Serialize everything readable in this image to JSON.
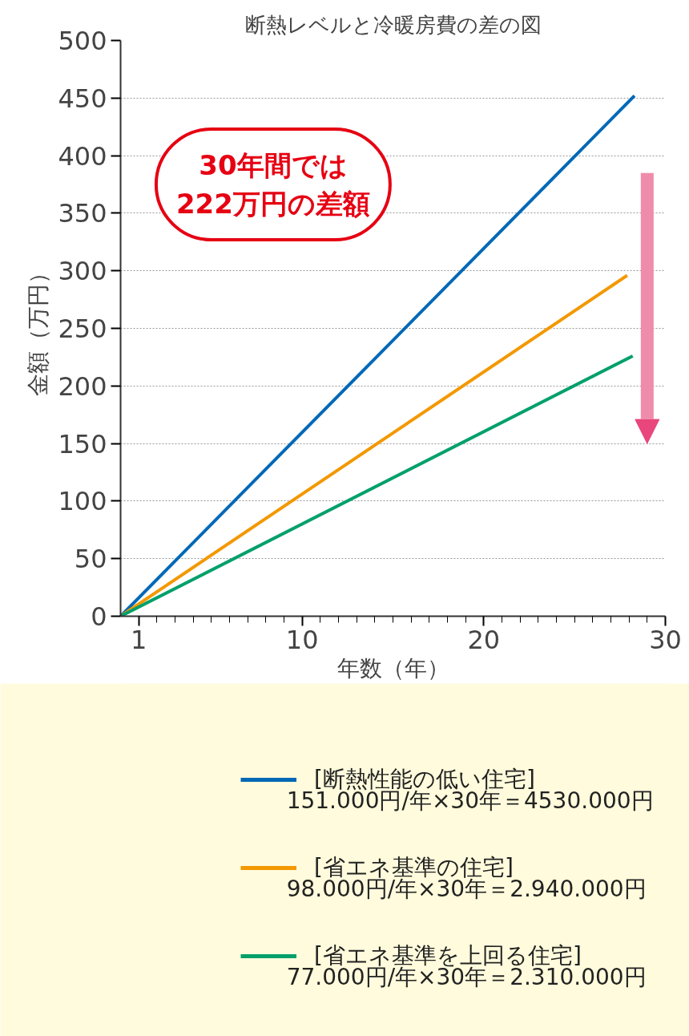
{
  "chart_data": {
    "type": "line",
    "title": "断熱レベルと冷暖房費の差の図",
    "xlabel": "年数（年）",
    "ylabel": "金額（万円）",
    "xlim": [
      0,
      30
    ],
    "xticks": [
      {
        "value": 1,
        "label": "1"
      },
      {
        "value": 2,
        "label": null
      },
      {
        "value": 3,
        "label": null
      },
      {
        "value": 4,
        "label": null
      },
      {
        "value": 5,
        "label": null
      },
      {
        "value": 6,
        "label": null
      },
      {
        "value": 7,
        "label": null
      },
      {
        "value": 8,
        "label": null
      },
      {
        "value": 9,
        "label": null
      },
      10,
      {
        "value": 11,
        "label": null
      },
      {
        "value": 12,
        "label": null
      },
      {
        "value": 13,
        "label": null
      },
      {
        "value": 14,
        "label": null
      },
      {
        "value": 15,
        "label": null
      },
      {
        "value": 16,
        "label": null
      },
      {
        "value": 17,
        "label": null
      },
      {
        "value": 18,
        "label": null
      },
      {
        "value": 19,
        "label": null
      },
      20,
      {
        "value": 21,
        "label": null
      },
      {
        "value": 22,
        "label": null
      },
      {
        "value": 23,
        "label": null
      },
      {
        "value": 24,
        "label": null
      },
      {
        "value": 25,
        "label": null
      },
      {
        "value": 26,
        "label": null
      },
      {
        "value": 27,
        "label": null
      },
      {
        "value": 28,
        "label": null
      },
      {
        "value": 29,
        "label": null
      },
      30
    ],
    "ylim": [
      0,
      500
    ],
    "yticks": [
      0,
      50,
      100,
      150,
      200,
      250,
      300,
      350,
      400,
      450,
      500
    ],
    "grid": "y",
    "legend": "bottom",
    "line_style": "solid",
    "marker": "none",
    "series": [
      {
        "name": "[断熱性能の低い住宅]",
        "color": "#0068b7",
        "x": [
          0,
          28.3
        ],
        "values": [
          0,
          452
        ]
      },
      {
        "name": "[省エネ基準の住宅]",
        "color": "#f39800",
        "x": [
          0,
          27.9
        ],
        "values": [
          0,
          296
        ]
      },
      {
        "name": "[省エネ基準を上回る住宅]",
        "color": "#00a06a",
        "x": [
          0,
          28.2
        ],
        "values": [
          0,
          226
        ]
      }
    ],
    "annotations": [
      "151.000円/年×30年＝4530.000円",
      "98.000円/年×30年＝2.940.000円",
      "77.000円/年×30年＝2.310.000円",
      "30年間では\n222万円の差額"
    ]
  }
}
